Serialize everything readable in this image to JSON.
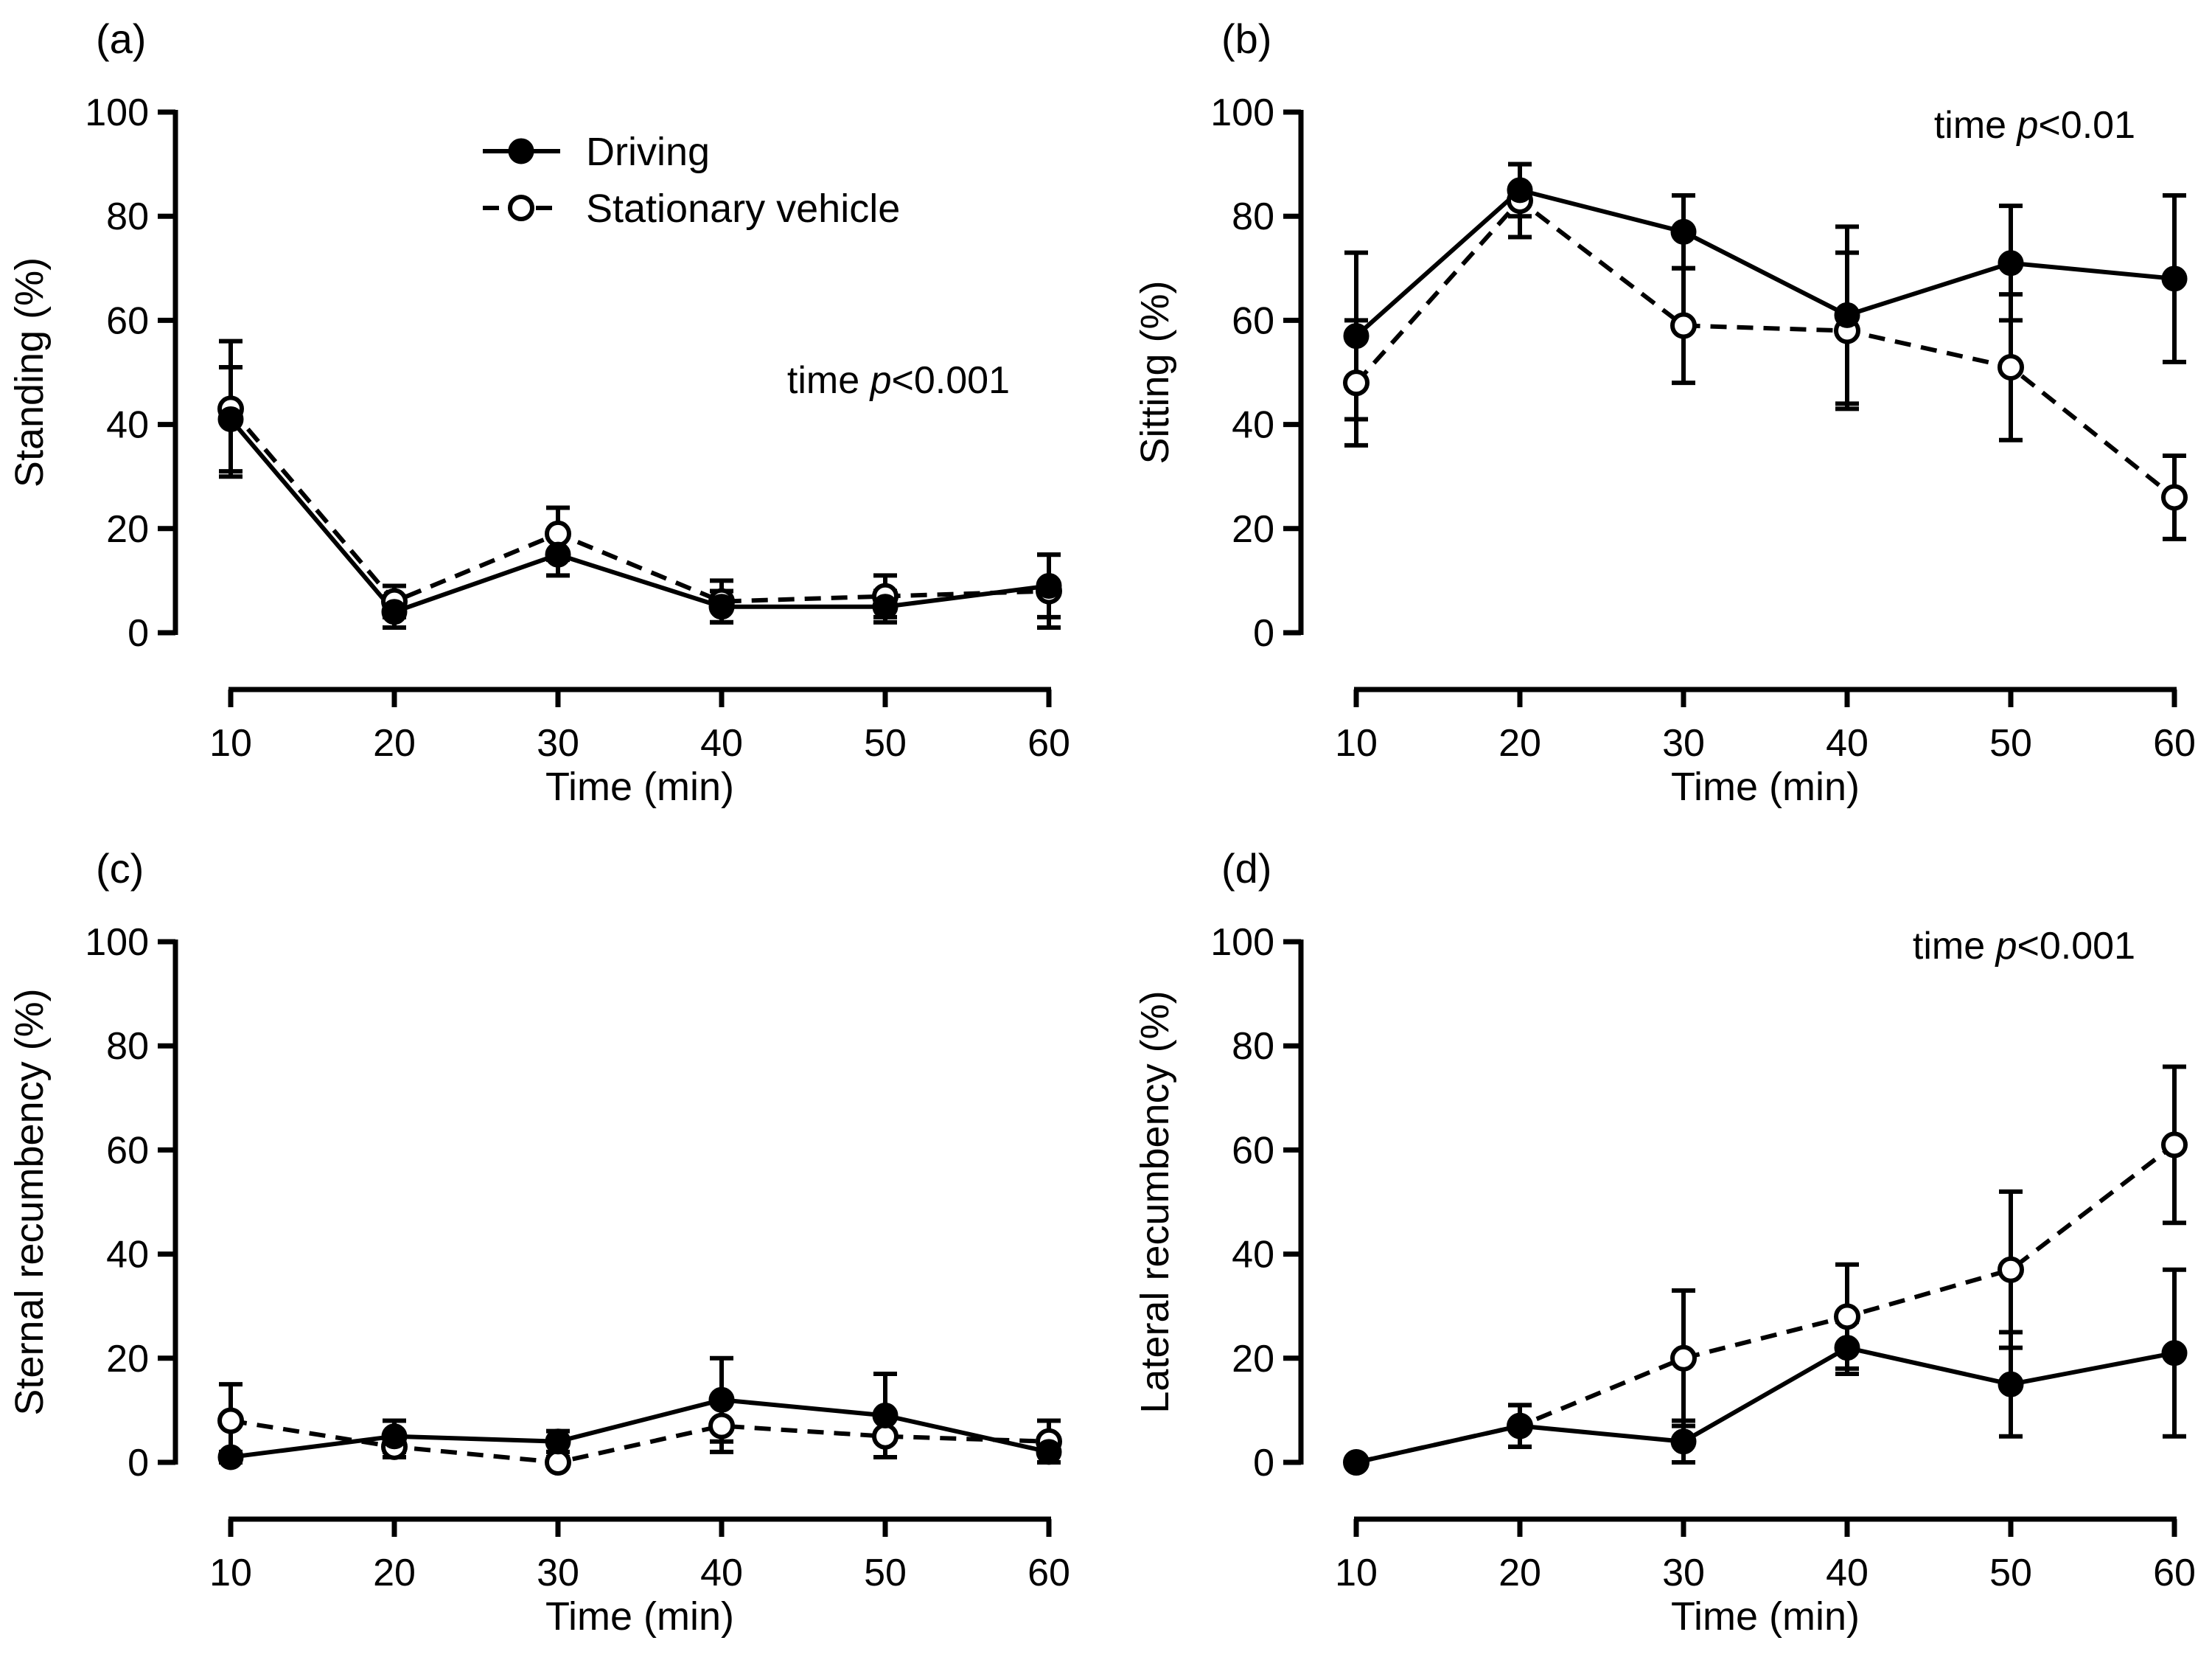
{
  "legend": {
    "items": [
      {
        "name": "Driving",
        "style": "solid-filled"
      },
      {
        "name": "Stationary vehicle",
        "style": "dashed-open"
      }
    ]
  },
  "chart_data": [
    {
      "id": "a",
      "type": "line",
      "panel_label": "(a)",
      "xlabel": "Time (min)",
      "ylabel": "Standing (%)",
      "annotation": {
        "prefix": "time ",
        "italic": "p",
        "suffix": "<0.001",
        "placement": "upper-right"
      },
      "x": [
        10,
        20,
        30,
        40,
        50,
        60
      ],
      "xticks": [
        "10",
        "20",
        "30",
        "40",
        "50",
        "60"
      ],
      "yticks": [
        "0",
        "20",
        "40",
        "60",
        "80",
        "100"
      ],
      "ylim": [
        0,
        100
      ],
      "series": [
        {
          "name": "Driving",
          "values": [
            41,
            4,
            15,
            5,
            5,
            9
          ],
          "errors": [
            10,
            3,
            4,
            3,
            3,
            6
          ]
        },
        {
          "name": "Stationary vehicle",
          "values": [
            43,
            6,
            19,
            6,
            7,
            8
          ],
          "errors": [
            13,
            3,
            5,
            4,
            4,
            7
          ]
        }
      ]
    },
    {
      "id": "b",
      "type": "line",
      "panel_label": "(b)",
      "xlabel": "Time (min)",
      "ylabel": "Sitting (%)",
      "annotation": {
        "prefix": "time ",
        "italic": "p",
        "suffix": "<0.01",
        "placement": "upper-right"
      },
      "x": [
        10,
        20,
        30,
        40,
        50,
        60
      ],
      "xticks": [
        "10",
        "20",
        "30",
        "40",
        "50",
        "60"
      ],
      "yticks": [
        "0",
        "20",
        "40",
        "60",
        "80",
        "100"
      ],
      "ylim": [
        0,
        100
      ],
      "series": [
        {
          "name": "Driving",
          "values": [
            57,
            85,
            77,
            61,
            71,
            68
          ],
          "errors": [
            16,
            5,
            7,
            17,
            11,
            16
          ]
        },
        {
          "name": "Stationary vehicle",
          "values": [
            48,
            83,
            59,
            58,
            51,
            26
          ],
          "errors": [
            12,
            7,
            11,
            15,
            14,
            8
          ]
        }
      ]
    },
    {
      "id": "c",
      "type": "line",
      "panel_label": "(c)",
      "xlabel": "Time (min)",
      "ylabel": "Sternal recumbency (%)",
      "annotation": null,
      "x": [
        10,
        20,
        30,
        40,
        50,
        60
      ],
      "xticks": [
        "10",
        "20",
        "30",
        "40",
        "50",
        "60"
      ],
      "yticks": [
        "0",
        "20",
        "40",
        "60",
        "80",
        "100"
      ],
      "ylim": [
        0,
        100
      ],
      "series": [
        {
          "name": "Driving",
          "values": [
            1,
            5,
            4,
            12,
            9,
            2
          ],
          "errors": [
            1,
            3,
            2,
            8,
            8,
            2
          ]
        },
        {
          "name": "Stationary vehicle",
          "values": [
            8,
            3,
            0,
            7,
            5,
            4
          ],
          "errors": [
            7,
            2,
            1,
            5,
            4,
            4
          ]
        }
      ]
    },
    {
      "id": "d",
      "type": "line",
      "panel_label": "(d)",
      "xlabel": "Time (min)",
      "ylabel": "Lateral recumbency (%)",
      "annotation": {
        "prefix": "time ",
        "italic": "p",
        "suffix": "<0.001",
        "placement": "upper-right"
      },
      "x": [
        10,
        20,
        30,
        40,
        50,
        60
      ],
      "xticks": [
        "10",
        "20",
        "30",
        "40",
        "50",
        "60"
      ],
      "yticks": [
        "0",
        "20",
        "40",
        "60",
        "80",
        "100"
      ],
      "ylim": [
        0,
        100
      ],
      "series": [
        {
          "name": "Driving",
          "values": [
            0,
            7,
            4,
            22,
            15,
            21
          ],
          "errors": [
            0,
            4,
            4,
            5,
            10,
            16
          ]
        },
        {
          "name": "Stationary vehicle",
          "values": [
            0,
            7,
            20,
            28,
            37,
            61
          ],
          "errors": [
            0,
            4,
            13,
            10,
            15,
            15
          ]
        }
      ]
    }
  ]
}
